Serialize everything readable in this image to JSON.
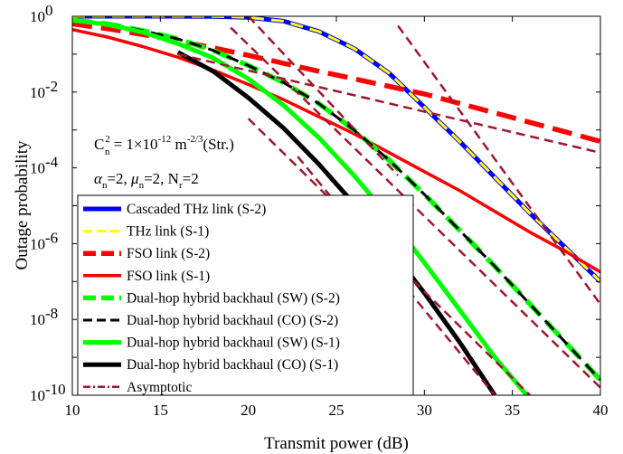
{
  "chart_data": {
    "type": "line",
    "title": "",
    "xlabel": "Transmit power (dB)",
    "ylabel": "Outage probability",
    "xlim": [
      10,
      40
    ],
    "ylim_log10": [
      -10,
      0
    ],
    "y_scale": "log",
    "grid": false,
    "legend_placement": "bottom-left",
    "x_ticks": [
      10,
      15,
      20,
      25,
      30,
      35,
      40
    ],
    "y_ticks": [
      {
        "base": "10",
        "exp": "0",
        "log": 0
      },
      {
        "base": "10",
        "exp": "-2",
        "log": -2
      },
      {
        "base": "10",
        "exp": "-4",
        "log": -4
      },
      {
        "base": "10",
        "exp": "-6",
        "log": -6
      },
      {
        "base": "10",
        "exp": "-8",
        "log": -8
      },
      {
        "base": "10",
        "exp": "-10",
        "log": -10
      }
    ],
    "annotations": {
      "line1_prefix": "C",
      "line1_sup": "2",
      "line1_sub": "n",
      "line1_mid": " = 1×10",
      "line1_exp": "-12",
      "line1_unit": " m",
      "line1_unit_exp": "-2/3",
      "line1_suffix": "(Str.)",
      "line2_alpha": "α",
      "line2_alpha_sub": "n",
      "line2_alpha_val": "=2, ",
      "line2_mu": "μ",
      "line2_mu_sub": "n",
      "line2_mu_val": "=2, N",
      "line2_n_sub": "r",
      "line2_n_val": "=2"
    },
    "series": [
      {
        "name": "Cascaded THz link (S-2)",
        "color": "#0000ff",
        "style": "solid-thick",
        "x": [
          10,
          15,
          18,
          20,
          22,
          24,
          26,
          28,
          30,
          32,
          34,
          36,
          38,
          40
        ],
        "log10_y": [
          0,
          0,
          -0.005,
          -0.03,
          -0.13,
          -0.4,
          -0.85,
          -1.5,
          -2.4,
          -3.3,
          -4.25,
          -5.2,
          -6.1,
          -7.0
        ]
      },
      {
        "name": "THz link (S-1)",
        "color": "#ffff00",
        "style": "dashed",
        "x": [
          10,
          15,
          18,
          20,
          22,
          24,
          26,
          28,
          30,
          32,
          34,
          36,
          38,
          40
        ],
        "log10_y": [
          0,
          0,
          -0.005,
          -0.03,
          -0.13,
          -0.4,
          -0.85,
          -1.5,
          -2.4,
          -3.3,
          -4.25,
          -5.2,
          -6.1,
          -7.0
        ]
      },
      {
        "name": "FSO link (S-2)",
        "color": "#ff0000",
        "style": "dashed-thick",
        "x": [
          10,
          12,
          14,
          16,
          18,
          20,
          22,
          24,
          26,
          28,
          30,
          32,
          34,
          36,
          38,
          40
        ],
        "log10_y": [
          -0.2,
          -0.33,
          -0.48,
          -0.65,
          -0.83,
          -1.03,
          -1.24,
          -1.45,
          -1.65,
          -1.85,
          -2.05,
          -2.3,
          -2.55,
          -2.8,
          -3.05,
          -3.3
        ]
      },
      {
        "name": "FSO link (S-1)",
        "color": "#ff0000",
        "style": "solid",
        "x": [
          10,
          12,
          14,
          16,
          18,
          20,
          22,
          24,
          26,
          28,
          30,
          32,
          34,
          36,
          38,
          40
        ],
        "log10_y": [
          -0.35,
          -0.55,
          -0.8,
          -1.08,
          -1.42,
          -1.8,
          -2.2,
          -2.65,
          -3.1,
          -3.6,
          -4.1,
          -4.6,
          -5.15,
          -5.7,
          -6.2,
          -6.75
        ]
      },
      {
        "name": "Dual-hop hybrid backhaul (SW) (S-2)",
        "color": "#00ff00",
        "style": "dashed-thick",
        "x": [
          10,
          12,
          14,
          16,
          18,
          20,
          22,
          24,
          26,
          28,
          30,
          32,
          34,
          36,
          38,
          40
        ],
        "log10_y": [
          -0.1,
          -0.2,
          -0.38,
          -0.6,
          -0.9,
          -1.3,
          -1.75,
          -2.3,
          -3.0,
          -3.8,
          -4.7,
          -5.65,
          -6.6,
          -7.6,
          -8.6,
          -9.6
        ]
      },
      {
        "name": "Dual-hop hybrid backhaul (CO) (S-2)",
        "color": "#000000",
        "style": "dashed",
        "x": [
          10,
          12,
          14,
          16,
          18,
          20,
          22,
          24,
          26,
          28,
          30,
          32,
          34,
          36,
          38,
          40
        ],
        "log10_y": [
          -0.1,
          -0.2,
          -0.38,
          -0.6,
          -0.9,
          -1.3,
          -1.75,
          -2.3,
          -3.0,
          -3.8,
          -4.7,
          -5.65,
          -6.6,
          -7.6,
          -8.6,
          -9.6
        ]
      },
      {
        "name": "Dual-hop hybrid backhaul (SW) (S-1)",
        "color": "#00ff00",
        "style": "solid-thick",
        "x": [
          10,
          12,
          14,
          16,
          18,
          20,
          22,
          24,
          26,
          28,
          30,
          32,
          34,
          36
        ],
        "log10_y": [
          -0.1,
          -0.22,
          -0.42,
          -0.72,
          -1.1,
          -1.65,
          -2.35,
          -3.2,
          -4.2,
          -5.3,
          -6.5,
          -7.75,
          -9.0,
          -10.1
        ]
      },
      {
        "name": "Dual-hop hybrid backhaul (CO) (S-1)",
        "color": "#000000",
        "style": "solid-thick",
        "x": [
          16,
          18,
          20,
          22,
          24,
          26,
          28,
          30,
          32,
          34
        ],
        "log10_y": [
          -0.95,
          -1.45,
          -2.15,
          -2.95,
          -3.9,
          -4.95,
          -6.1,
          -7.3,
          -8.6,
          -10.0
        ]
      },
      {
        "name": "Asymptotic",
        "color": "#a0162e",
        "style": "dash-dot",
        "x": [],
        "log10_y": []
      }
    ],
    "asymptotes": [
      {
        "x": [
          20,
          28.5
        ],
        "log10_y": [
          0,
          -4.2
        ]
      },
      {
        "x": [
          28.5,
          40
        ],
        "log10_y": [
          -0.25,
          -7.6
        ]
      },
      {
        "x": [
          16,
          40
        ],
        "log10_y": [
          -1.0,
          -3.6
        ]
      },
      {
        "x": [
          19,
          40
        ],
        "log10_y": [
          -0.3,
          -9.8
        ]
      },
      {
        "x": [
          20,
          36
        ],
        "log10_y": [
          -2.7,
          -10
        ]
      },
      {
        "x": [
          22.8,
          34
        ],
        "log10_y": [
          -3.7,
          -10
        ]
      }
    ]
  }
}
